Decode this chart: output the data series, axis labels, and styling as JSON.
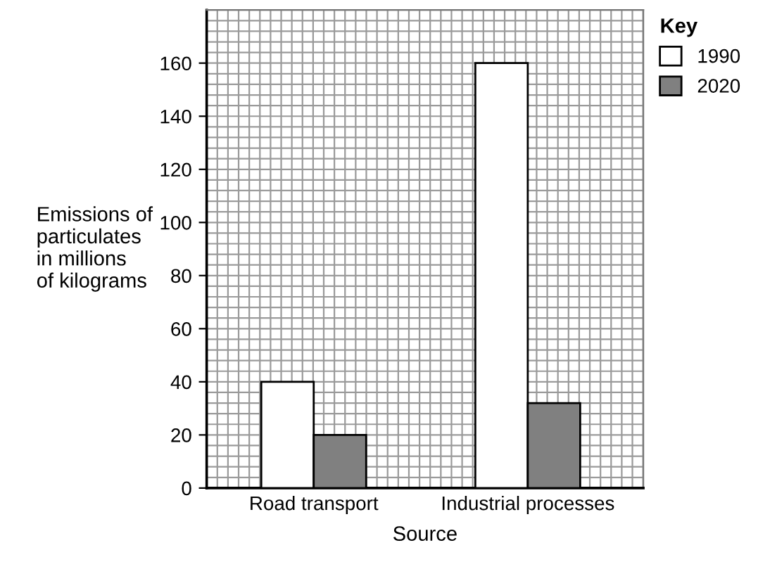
{
  "chart_data": {
    "type": "bar",
    "categories": [
      "Road transport",
      "Industrial processes"
    ],
    "series": [
      {
        "name": "1990",
        "color": "#ffffff",
        "values": [
          40,
          160
        ]
      },
      {
        "name": "2020",
        "color": "#808080",
        "values": [
          20,
          32
        ]
      }
    ],
    "xlabel": "Source",
    "ylabel": "Emissions of\nparticulates\nin millions\nof kilograms",
    "legend_title": "Key",
    "legend": "right",
    "ylim": [
      0,
      180
    ],
    "yticks": [
      0,
      20,
      40,
      60,
      80,
      100,
      120,
      140,
      160
    ],
    "grid": true
  }
}
